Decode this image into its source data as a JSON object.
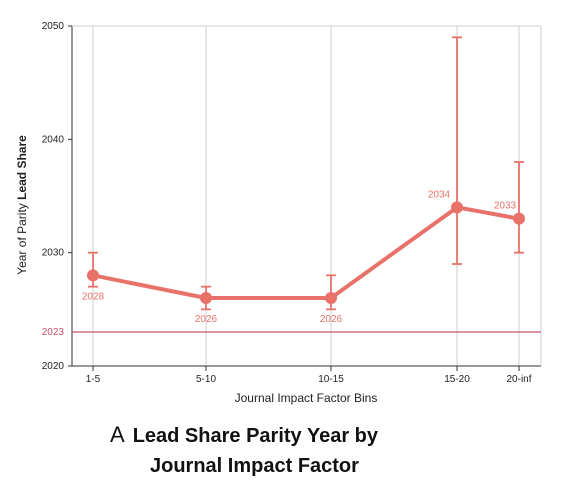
{
  "chart_data": {
    "type": "line",
    "categories": [
      "1-5",
      "5-10",
      "10-15",
      "15-20",
      "20-inf"
    ],
    "series": [
      {
        "values": [
          2028,
          2026,
          2026,
          2034,
          2033
        ],
        "error_low": [
          2027,
          2025,
          2025,
          2029,
          2030
        ],
        "error_high": [
          2030,
          2027,
          2028,
          2049,
          2038
        ],
        "labels": [
          "2028",
          "2026",
          "2026",
          "2034",
          "2033"
        ],
        "color": "#e8726a"
      }
    ],
    "reference_line": {
      "value": 2023,
      "label": "2023",
      "color": "#c9506a"
    },
    "y_ticks": [
      "2020",
      "2030",
      "2040",
      "2050"
    ],
    "ylim": [
      2020,
      2050
    ],
    "ylabel_prefix": "Year of Parity ",
    "ylabel_bold": "Lead Share",
    "xlabel": "Journal Impact Factor Bins",
    "grid": "vertical"
  },
  "caption": {
    "letter": "A",
    "line1": "Lead Share Parity Year by",
    "line2": "Journal Impact Factor"
  }
}
